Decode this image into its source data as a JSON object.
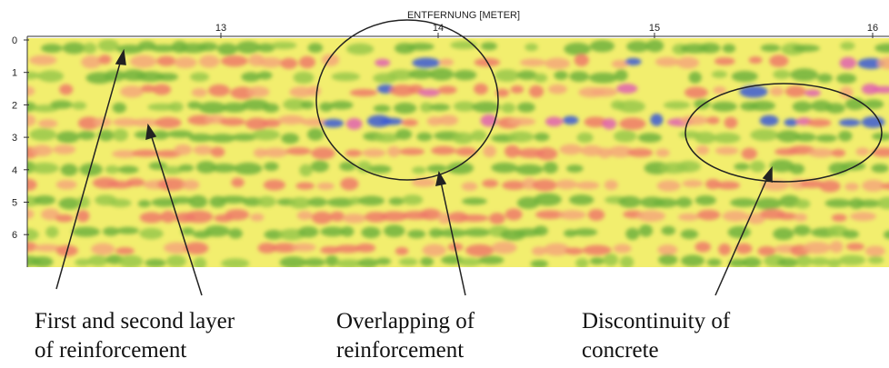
{
  "axis_title": "ENTFERNUNG [METER]",
  "x_ticks": [
    "13",
    "14",
    "15",
    "16"
  ],
  "y_ticks": [
    "0",
    "1",
    "2",
    "3",
    "4",
    "5",
    "6"
  ],
  "annotations": [
    {
      "lines": [
        "First and second layer",
        "of reinforcement"
      ]
    },
    {
      "lines": [
        "Overlapping of",
        "reinforcement"
      ]
    },
    {
      "lines": [
        "Discontinuity of",
        "concrete"
      ]
    }
  ]
}
